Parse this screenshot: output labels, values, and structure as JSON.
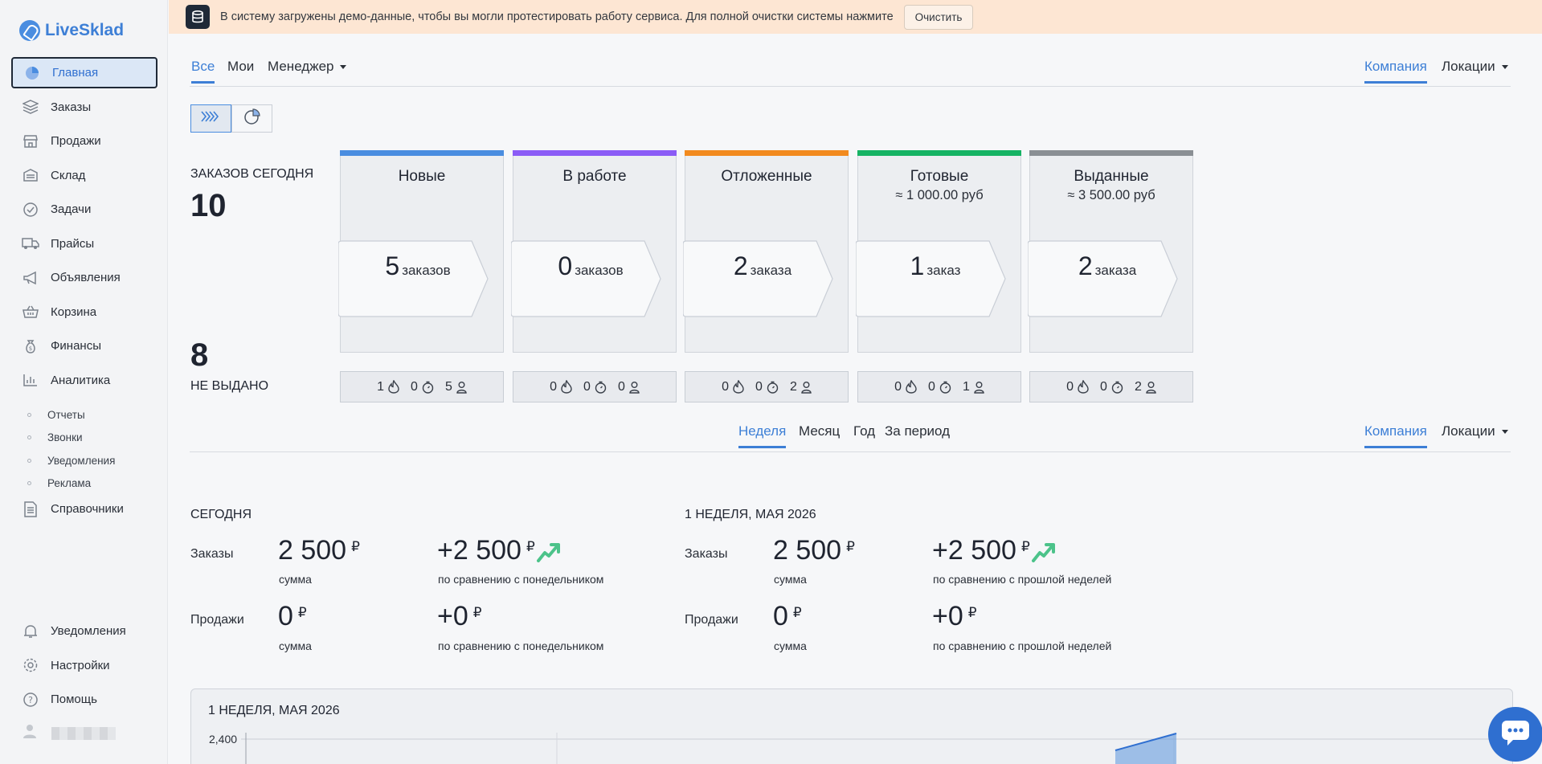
{
  "app": {
    "name": "LiveSklad"
  },
  "banner": {
    "message": "В систему загружены демо-данные, чтобы вы могли протестировать работу сервиса. Для полной очистки системы нажмите",
    "button_label": "Очистить"
  },
  "sidebar": {
    "items": [
      {
        "label": "Главная",
        "icon": "dashboard-icon"
      },
      {
        "label": "Заказы",
        "icon": "orders-icon"
      },
      {
        "label": "Продажи",
        "icon": "store-icon"
      },
      {
        "label": "Склад",
        "icon": "warehouse-icon"
      },
      {
        "label": "Задачи",
        "icon": "tasks-icon"
      },
      {
        "label": "Прайсы",
        "icon": "truck-icon"
      },
      {
        "label": "Объявления",
        "icon": "megaphone-icon"
      },
      {
        "label": "Корзина",
        "icon": "basket-icon"
      },
      {
        "label": "Финансы",
        "icon": "money-bag-icon"
      },
      {
        "label": "Аналитика",
        "icon": "bar-chart-icon"
      }
    ],
    "analytics_sub": [
      "Отчеты",
      "Звонки",
      "Уведомления",
      "Реклама"
    ],
    "directories": "Справочники",
    "bottom": [
      "Уведомления",
      "Настройки",
      "Помощь"
    ]
  },
  "filter_tabs": {
    "all": "Все",
    "mine": "Мои",
    "manager": "Менеджер",
    "company": "Компания",
    "locations": "Локации"
  },
  "orders_today": {
    "label": "ЗАКАЗОВ СЕГОДНЯ",
    "value": "10"
  },
  "not_issued": {
    "label": "НЕ ВЫДАНО",
    "value": "8"
  },
  "status_cards": [
    {
      "title": "Новые",
      "subtitle": "",
      "count": "5",
      "word": "заказов",
      "color": "#4a8de0",
      "stats": [
        "1",
        "0",
        "5"
      ]
    },
    {
      "title": "В работе",
      "subtitle": "",
      "count": "0",
      "word": "заказов",
      "color": "#8b5cf6",
      "stats": [
        "0",
        "0",
        "0"
      ]
    },
    {
      "title": "Отложенные",
      "subtitle": "",
      "count": "2",
      "word": "заказа",
      "color": "#f28a1e",
      "stats": [
        "0",
        "0",
        "2"
      ]
    },
    {
      "title": "Готовые",
      "subtitle": "≈ 1 000.00 руб",
      "count": "1",
      "word": "заказ",
      "color": "#16b364",
      "stats": [
        "0",
        "0",
        "1"
      ]
    },
    {
      "title": "Выданные",
      "subtitle": "≈ 3 500.00 руб",
      "count": "2",
      "word": "заказа",
      "color": "#8a8f94",
      "stats": [
        "0",
        "0",
        "2"
      ]
    }
  ],
  "period_tabs": {
    "week": "Неделя",
    "month": "Месяц",
    "year": "Год",
    "custom": "За период",
    "company": "Компания",
    "locations": "Локации"
  },
  "today": {
    "title": "СЕГОДНЯ",
    "orders_label": "Заказы",
    "orders_value": "2 500",
    "orders_caption": "сумма",
    "orders_delta": "+2 500",
    "orders_delta_caption": "по сравнению с понедельником",
    "sales_label": "Продажи",
    "sales_value": "0",
    "sales_caption": "сумма",
    "sales_delta": "+0",
    "sales_delta_caption": "по сравнению с понедельником"
  },
  "week": {
    "title": "1 НЕДЕЛЯ, МАЯ 2026",
    "orders_label": "Заказы",
    "orders_value": "2 500",
    "orders_caption": "сумма",
    "orders_delta": "+2 500",
    "orders_delta_caption": "по сравнению с прошлой неделей",
    "sales_label": "Продажи",
    "sales_value": "0",
    "sales_caption": "сумма",
    "sales_delta": "+0",
    "sales_delta_caption": "по сравнению с прошлой неделей"
  },
  "currency": "₽",
  "chart": {
    "title": "1 НЕДЕЛЯ, МАЯ 2026",
    "y_tick": "2,400"
  }
}
